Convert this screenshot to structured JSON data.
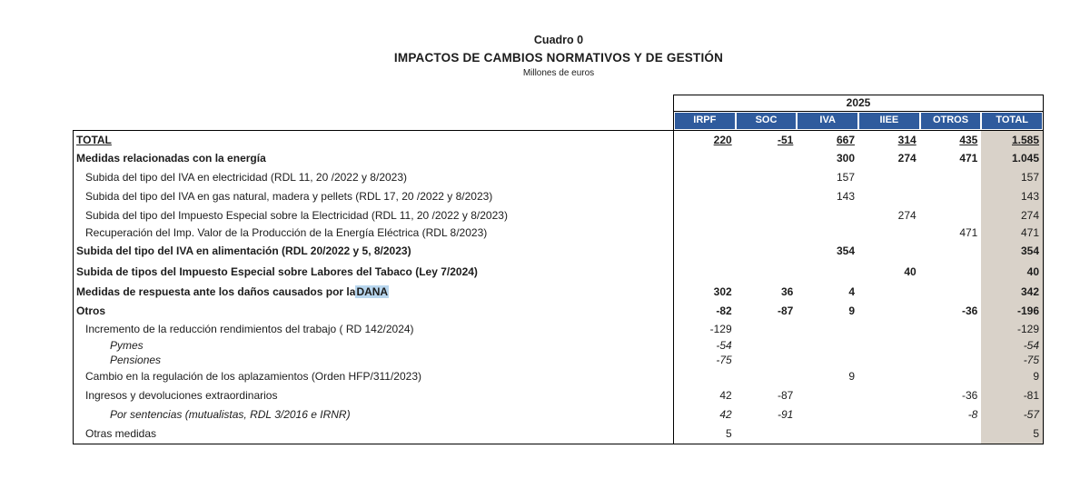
{
  "header": {
    "table_number": "Cuadro 0",
    "title": "IMPACTOS DE CAMBIOS NORMATIVOS Y DE GESTIÓN",
    "subtitle": "Millones de euros"
  },
  "table": {
    "year": "2025",
    "columns": [
      "IRPF",
      "SOC",
      "IVA",
      "IIEE",
      "OTROS",
      "TOTAL"
    ],
    "colors": {
      "header_bg": "#2f5b9d",
      "header_text": "#ffffff",
      "total_column_bg": "#d9d2c9",
      "highlight_bg": "#b8d6ee",
      "border": "#000000"
    },
    "rows": [
      {
        "label": "TOTAL",
        "style": "total",
        "indent": 0,
        "values": [
          "220",
          "-51",
          "667",
          "314",
          "435",
          "1.585"
        ]
      },
      {
        "label": "Medidas relacionadas con la energía",
        "style": "bold",
        "indent": 0,
        "values": [
          "",
          "",
          "300",
          "274",
          "471",
          "1.045"
        ]
      },
      {
        "label": "Subida del tipo del IVA en electricidad (RDL 11, 20 /2022 y 8/2023)",
        "style": "plain",
        "indent": 1,
        "values": [
          "",
          "",
          "157",
          "",
          "",
          "157"
        ]
      },
      {
        "label": "Subida del tipo del IVA en gas natural, madera y pellets (RDL 17, 20 /2022 y 8/2023)",
        "style": "plain",
        "indent": 1,
        "values": [
          "",
          "",
          "143",
          "",
          "",
          "143"
        ]
      },
      {
        "label": "Subida del tipo del Impuesto Especial sobre la Electricidad (RDL 11, 20 /2022 y 8/2023)",
        "style": "plain",
        "indent": 1,
        "values": [
          "",
          "",
          "",
          "274",
          "",
          "274"
        ]
      },
      {
        "label": "Recuperación del Imp. Valor de la Producción de la Energía Eléctrica (RDL 8/2023)",
        "style": "plain",
        "indent": 1,
        "values": [
          "",
          "",
          "",
          "",
          "471",
          "471"
        ]
      },
      {
        "label": "Subida del tipo del IVA en alimentación (RDL 20/2022 y  5, 8/2023)",
        "style": "bold",
        "indent": 0,
        "values": [
          "",
          "",
          "354",
          "",
          "",
          "354"
        ]
      },
      {
        "label": "Subida de tipos del Impuesto Especial sobre Labores del Tabaco (Ley 7/2024)",
        "style": "bold",
        "indent": 0,
        "values": [
          "",
          "",
          "",
          "40",
          "",
          "40"
        ]
      },
      {
        "label": "Medidas de respuesta ante los daños causados por la DANA",
        "style": "bold",
        "indent": 0,
        "highlight": "DANA",
        "values": [
          "302",
          "36",
          "4",
          "",
          "",
          "342"
        ]
      },
      {
        "label": "Otros",
        "style": "bold",
        "indent": 0,
        "values": [
          "-82",
          "-87",
          "9",
          "",
          "-36",
          "-196"
        ]
      },
      {
        "label": "Incremento de la reducción rendimientos del trabajo ( RD 142/2024)",
        "style": "plain",
        "indent": 1,
        "values": [
          "-129",
          "",
          "",
          "",
          "",
          "-129"
        ]
      },
      {
        "label": "Pymes",
        "style": "italic",
        "indent": 2,
        "values": [
          "-54",
          "",
          "",
          "",
          "",
          "-54"
        ]
      },
      {
        "label": "Pensiones",
        "style": "italic",
        "indent": 2,
        "values": [
          "-75",
          "",
          "",
          "",
          "",
          "-75"
        ]
      },
      {
        "label": "Cambio en la regulación de los aplazamientos (Orden HFP/311/2023)",
        "style": "plain",
        "indent": 1,
        "values": [
          "",
          "",
          "9",
          "",
          "",
          "9"
        ]
      },
      {
        "label": "Ingresos y devoluciones extraordinarios",
        "style": "plain",
        "indent": 1,
        "values": [
          "42",
          "-87",
          "",
          "",
          "-36",
          "-81"
        ]
      },
      {
        "label": "Por sentencias (mutualistas, RDL 3/2016 e IRNR)",
        "style": "italic",
        "indent": 2,
        "values": [
          "42",
          "-91",
          "",
          "",
          "-8",
          "-57"
        ]
      },
      {
        "label": "Otras medidas",
        "style": "plain",
        "indent": 1,
        "values": [
          "5",
          "",
          "",
          "",
          "",
          "5"
        ]
      }
    ]
  }
}
